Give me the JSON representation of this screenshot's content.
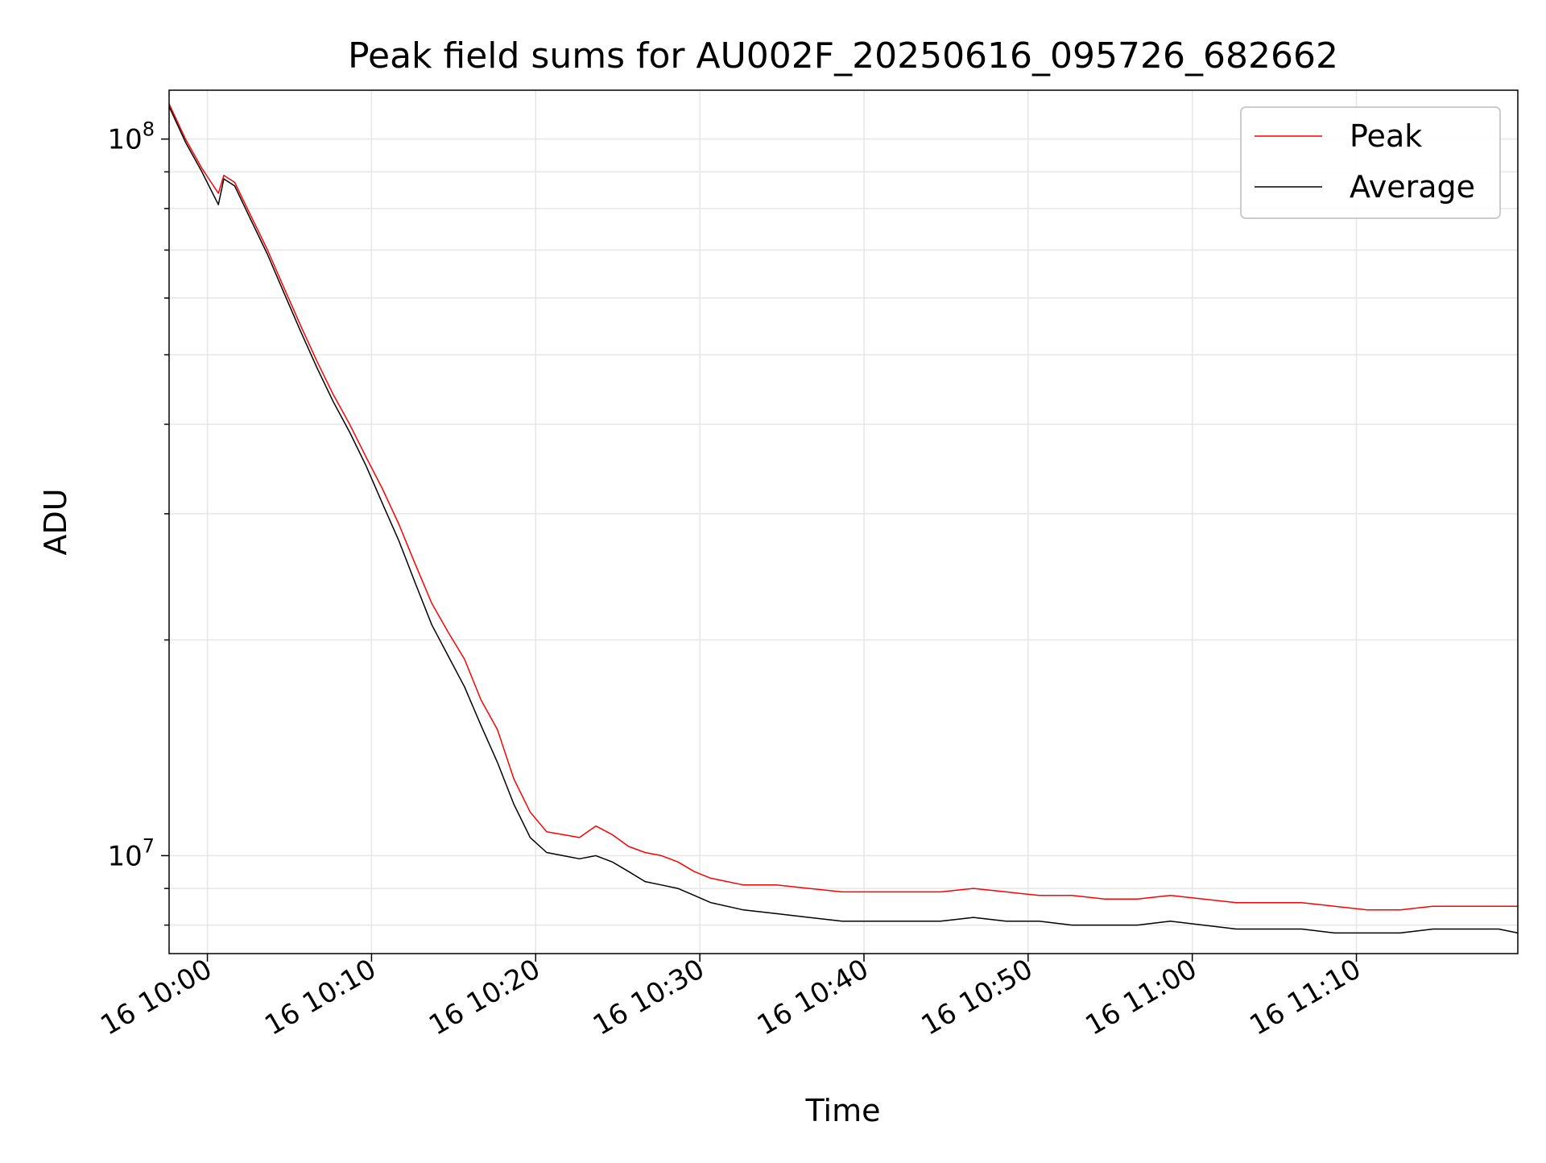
{
  "chart_data": {
    "type": "line",
    "title": "Peak field sums for AU002F_20250616_095726_682662",
    "xlabel": "Time",
    "ylabel": "ADU",
    "y_scale": "log",
    "x_range": [
      "2025-06-16 09:57:40",
      "2025-06-16 11:19:50"
    ],
    "ylim": [
      7300000,
      117000000
    ],
    "x_ticks": [
      {
        "label": "16 10:00",
        "value": "2025-06-16 10:00:00"
      },
      {
        "label": "16 10:10",
        "value": "2025-06-16 10:10:00"
      },
      {
        "label": "16 10:20",
        "value": "2025-06-16 10:20:00"
      },
      {
        "label": "16 10:30",
        "value": "2025-06-16 10:30:00"
      },
      {
        "label": "16 10:40",
        "value": "2025-06-16 10:40:00"
      },
      {
        "label": "16 10:50",
        "value": "2025-06-16 10:50:00"
      },
      {
        "label": "16 11:00",
        "value": "2025-06-16 11:00:00"
      },
      {
        "label": "16 11:10",
        "value": "2025-06-16 11:10:00"
      }
    ],
    "y_ticks": [
      {
        "base": "10",
        "exponent": "7",
        "value": 10000000
      },
      {
        "base": "10",
        "exponent": "8",
        "value": 100000000
      }
    ],
    "grid": true,
    "legend_position": "top-right",
    "series": [
      {
        "name": "Peak",
        "color": "#ff0000",
        "x": [
          "2025-06-16 09:57:40",
          "2025-06-16 09:58:40",
          "2025-06-16 09:59:40",
          "2025-06-16 10:00:40",
          "2025-06-16 10:01:00",
          "2025-06-16 10:01:40",
          "2025-06-16 10:02:40",
          "2025-06-16 10:03:40",
          "2025-06-16 10:04:40",
          "2025-06-16 10:05:40",
          "2025-06-16 10:06:40",
          "2025-06-16 10:07:40",
          "2025-06-16 10:08:40",
          "2025-06-16 10:09:40",
          "2025-06-16 10:10:40",
          "2025-06-16 10:11:40",
          "2025-06-16 10:12:40",
          "2025-06-16 10:13:40",
          "2025-06-16 10:14:40",
          "2025-06-16 10:15:40",
          "2025-06-16 10:16:40",
          "2025-06-16 10:17:40",
          "2025-06-16 10:18:40",
          "2025-06-16 10:19:40",
          "2025-06-16 10:20:40",
          "2025-06-16 10:21:40",
          "2025-06-16 10:22:40",
          "2025-06-16 10:23:40",
          "2025-06-16 10:24:40",
          "2025-06-16 10:25:40",
          "2025-06-16 10:26:40",
          "2025-06-16 10:27:40",
          "2025-06-16 10:28:40",
          "2025-06-16 10:29:40",
          "2025-06-16 10:30:40",
          "2025-06-16 10:32:40",
          "2025-06-16 10:34:40",
          "2025-06-16 10:36:40",
          "2025-06-16 10:38:40",
          "2025-06-16 10:40:40",
          "2025-06-16 10:42:40",
          "2025-06-16 10:44:40",
          "2025-06-16 10:46:40",
          "2025-06-16 10:48:40",
          "2025-06-16 10:50:40",
          "2025-06-16 10:52:40",
          "2025-06-16 10:54:40",
          "2025-06-16 10:56:40",
          "2025-06-16 10:58:40",
          "2025-06-16 11:00:40",
          "2025-06-16 11:02:40",
          "2025-06-16 11:04:40",
          "2025-06-16 11:06:40",
          "2025-06-16 11:08:40",
          "2025-06-16 11:10:40",
          "2025-06-16 11:12:40",
          "2025-06-16 11:14:40",
          "2025-06-16 11:16:40",
          "2025-06-16 11:18:40",
          "2025-06-16 11:19:50"
        ],
        "values": [
          112000000,
          100000000,
          91000000,
          84000000,
          89000000,
          87000000,
          78000000,
          70000000,
          62000000,
          55000000,
          49000000,
          44000000,
          40000000,
          36000000,
          32500000,
          29000000,
          25500000,
          22500000,
          20500000,
          18800000,
          16500000,
          15000000,
          12800000,
          11500000,
          10800000,
          10700000,
          10600000,
          11000000,
          10700000,
          10300000,
          10100000,
          10000000,
          9800000,
          9500000,
          9300000,
          9100000,
          9100000,
          9000000,
          8900000,
          8900000,
          8900000,
          8900000,
          9000000,
          8900000,
          8800000,
          8800000,
          8700000,
          8700000,
          8800000,
          8700000,
          8600000,
          8600000,
          8600000,
          8500000,
          8400000,
          8400000,
          8500000,
          8500000,
          8500000,
          8500000
        ]
      },
      {
        "name": "Average",
        "color": "#000000",
        "x": [
          "2025-06-16 09:57:40",
          "2025-06-16 09:58:40",
          "2025-06-16 09:59:40",
          "2025-06-16 10:00:40",
          "2025-06-16 10:01:00",
          "2025-06-16 10:01:40",
          "2025-06-16 10:02:40",
          "2025-06-16 10:03:40",
          "2025-06-16 10:04:40",
          "2025-06-16 10:05:40",
          "2025-06-16 10:06:40",
          "2025-06-16 10:07:40",
          "2025-06-16 10:08:40",
          "2025-06-16 10:09:40",
          "2025-06-16 10:10:40",
          "2025-06-16 10:11:40",
          "2025-06-16 10:12:40",
          "2025-06-16 10:13:40",
          "2025-06-16 10:14:40",
          "2025-06-16 10:15:40",
          "2025-06-16 10:16:40",
          "2025-06-16 10:17:40",
          "2025-06-16 10:18:40",
          "2025-06-16 10:19:40",
          "2025-06-16 10:20:40",
          "2025-06-16 10:21:40",
          "2025-06-16 10:22:40",
          "2025-06-16 10:23:40",
          "2025-06-16 10:24:40",
          "2025-06-16 10:25:40",
          "2025-06-16 10:26:40",
          "2025-06-16 10:27:40",
          "2025-06-16 10:28:40",
          "2025-06-16 10:29:40",
          "2025-06-16 10:30:40",
          "2025-06-16 10:32:40",
          "2025-06-16 10:34:40",
          "2025-06-16 10:36:40",
          "2025-06-16 10:38:40",
          "2025-06-16 10:40:40",
          "2025-06-16 10:42:40",
          "2025-06-16 10:44:40",
          "2025-06-16 10:46:40",
          "2025-06-16 10:48:40",
          "2025-06-16 10:50:40",
          "2025-06-16 10:52:40",
          "2025-06-16 10:54:40",
          "2025-06-16 10:56:40",
          "2025-06-16 10:58:40",
          "2025-06-16 11:00:40",
          "2025-06-16 11:02:40",
          "2025-06-16 11:04:40",
          "2025-06-16 11:06:40",
          "2025-06-16 11:08:40",
          "2025-06-16 11:10:40",
          "2025-06-16 11:12:40",
          "2025-06-16 11:14:40",
          "2025-06-16 11:16:40",
          "2025-06-16 11:18:40",
          "2025-06-16 11:19:50"
        ],
        "values": [
          111000000,
          99000000,
          90000000,
          81000000,
          88000000,
          86000000,
          77000000,
          69000000,
          61000000,
          54000000,
          48000000,
          43000000,
          39000000,
          35000000,
          31000000,
          27500000,
          24000000,
          21000000,
          19000000,
          17200000,
          15200000,
          13500000,
          11800000,
          10600000,
          10100000,
          10000000,
          9900000,
          10000000,
          9800000,
          9500000,
          9200000,
          9100000,
          9000000,
          8800000,
          8600000,
          8400000,
          8300000,
          8200000,
          8100000,
          8100000,
          8100000,
          8100000,
          8200000,
          8100000,
          8100000,
          8000000,
          8000000,
          8000000,
          8100000,
          8000000,
          7900000,
          7900000,
          7900000,
          7800000,
          7800000,
          7800000,
          7900000,
          7900000,
          7900000,
          7800000
        ]
      }
    ]
  }
}
